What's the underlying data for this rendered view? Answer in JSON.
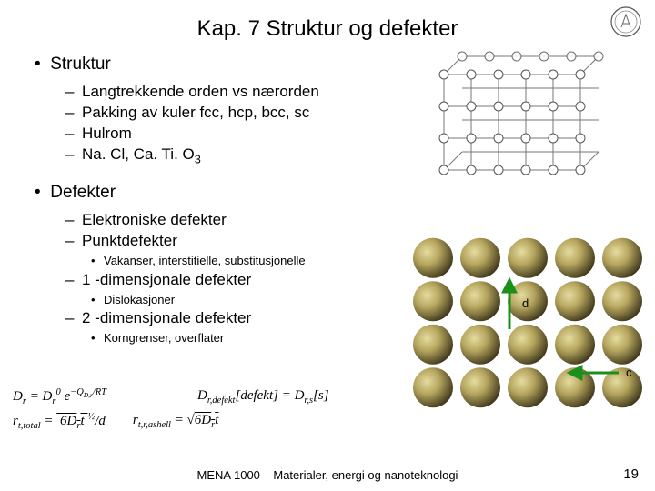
{
  "title": "Kap. 7 Struktur og defekter",
  "logo_name": "university-seal",
  "section1": {
    "heading": "Struktur",
    "items": [
      "Langtrekkende orden vs nærorden",
      "Pakking av kuler fcc, hcp, bcc, sc",
      "Hulrom",
      "Na. Cl, Ca. Ti. O"
    ],
    "item4_sub": "3"
  },
  "section2": {
    "heading": "Defekter",
    "items": [
      {
        "label": "Elektroniske defekter",
        "sub": []
      },
      {
        "label": "Punktdefekter",
        "sub": [
          "Vakanser, interstitielle, substitusjonelle"
        ]
      },
      {
        "label": "1 -dimensjonale defekter",
        "sub": [
          "Dislokasjoner"
        ]
      },
      {
        "label": "2 -dimensjonale defekter",
        "sub": [
          "Korngrenser, overflater"
        ]
      }
    ]
  },
  "equations": {
    "line1": [
      "D_r = D_r^0 e^{−Q_{D,r}/RT}",
      "D_{r,defekt}[defekt] = D_{r,s}[s]"
    ],
    "line2": [
      "r_{t,total} = √(6D_r t) / d",
      "r_{t,r,ashell} = √(6D_r t)"
    ]
  },
  "figures": {
    "lattice": {
      "type": "diagram",
      "rows": 4,
      "cols": 6,
      "depth": 3,
      "node_radius": 5,
      "node_fill": "#ffffff",
      "node_stroke": "#555555",
      "line_color": "#777777",
      "background": "#ffffff"
    },
    "atoms": {
      "type": "infographic",
      "grid_rows": 4,
      "grid_cols": 5,
      "atom_radius": 22,
      "atom_gradient": {
        "inner": "#d4c27a",
        "mid": "#9a8a4a",
        "outer": "#4a4020"
      },
      "background": "#ffffff",
      "arrows": [
        {
          "label": "d",
          "from": [
            2,
            2
          ],
          "to": [
            2,
            1
          ],
          "color": "#1a8f1a"
        },
        {
          "label": "c",
          "from": [
            4,
            3
          ],
          "to": [
            3,
            3
          ],
          "color": "#1a8f1a"
        }
      ]
    }
  },
  "footer": "MENA 1000 – Materialer, energi og nanoteknologi",
  "page_number": "19",
  "colors": {
    "text": "#000000",
    "background": "#ffffff",
    "arrow_green": "#1a8f1a"
  }
}
